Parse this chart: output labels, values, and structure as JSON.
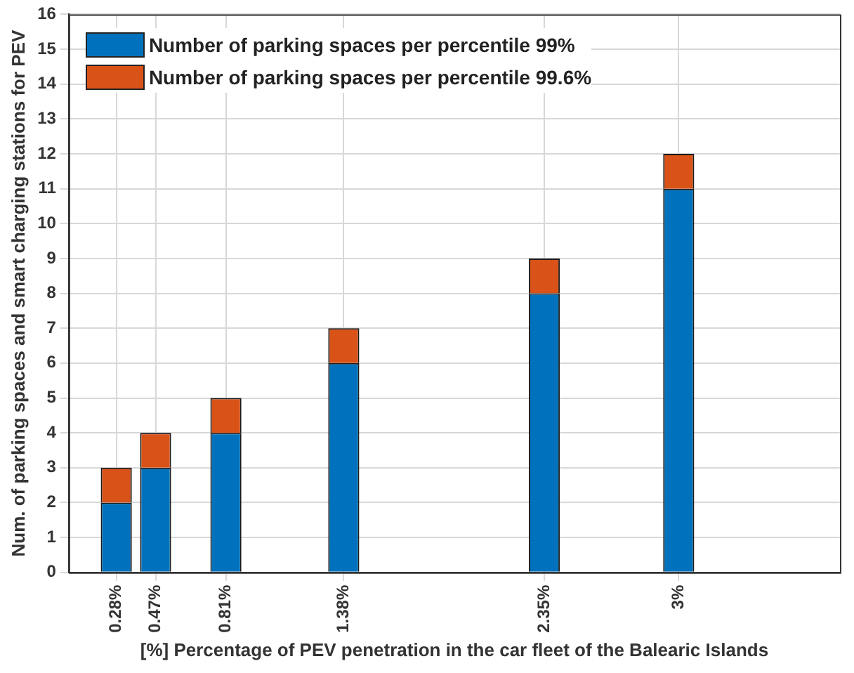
{
  "chart_data": {
    "type": "bar",
    "stacked": true,
    "xlabel": "[%] Percentage of PEV penetration in the car fleet of the Balearic Islands",
    "ylabel": "Num. of parking spaces and smart charging stations for PEV",
    "x": [
      0.28,
      0.47,
      0.81,
      1.38,
      2.35,
      3
    ],
    "series": [
      {
        "name": "Number of parking spaces per percentile 99%",
        "color": "#0072bd",
        "values": [
          2,
          3,
          4,
          6,
          8,
          11
        ]
      },
      {
        "name": "Number of parking spaces per percentile 99.6%",
        "color": "#d95319",
        "values": [
          1,
          1,
          1,
          1,
          1,
          1
        ]
      }
    ],
    "xlim": [
      0.05,
      3.78
    ],
    "xticks": [
      {
        "value": 0.28,
        "label": "0.28%"
      },
      {
        "value": 0.47,
        "label": "0.47%"
      },
      {
        "value": 0.81,
        "label": "0.81%"
      },
      {
        "value": 1.38,
        "label": "1.38%"
      },
      {
        "value": 2.35,
        "label": "2.35%"
      },
      {
        "value": 3,
        "label": "3%"
      }
    ],
    "ylim": [
      0,
      16
    ],
    "yticks": [
      0,
      1,
      2,
      3,
      4,
      5,
      6,
      7,
      8,
      9,
      10,
      11,
      12,
      13,
      14,
      15,
      16
    ],
    "grid": true,
    "legend": "top left"
  }
}
